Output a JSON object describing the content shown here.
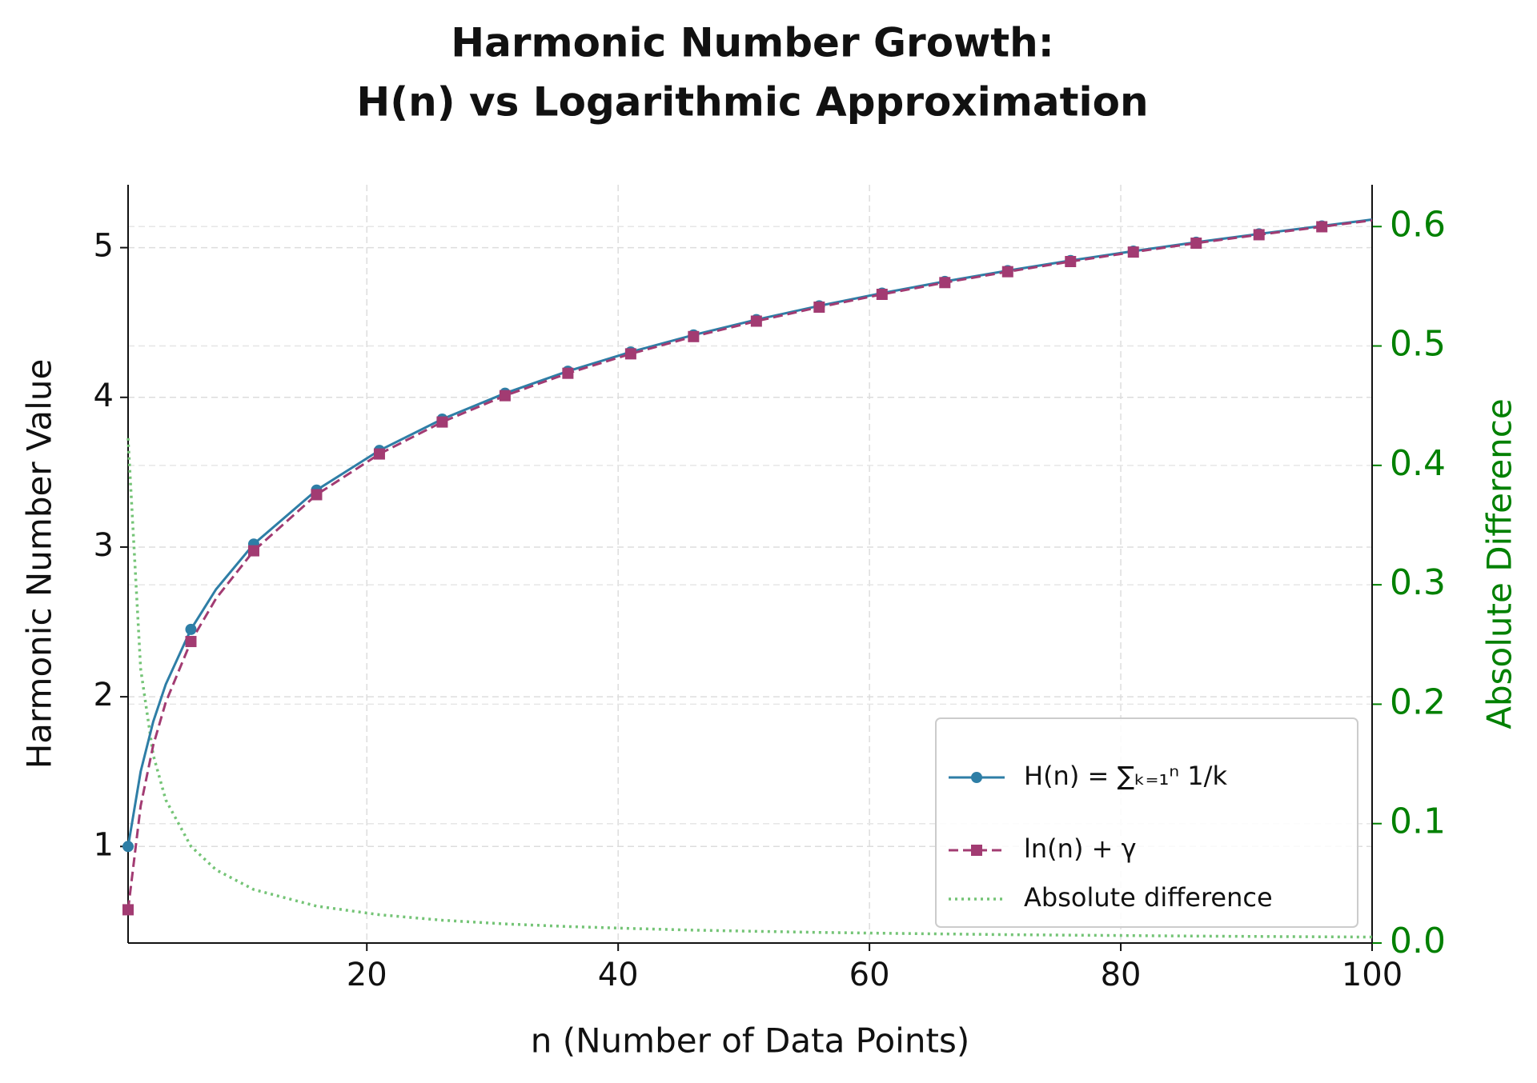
{
  "chart_data": {
    "type": "line",
    "title": [
      "Harmonic Number Growth:",
      "H(n) vs Logarithmic Approximation"
    ],
    "x_label": "n (Number of Data Points)",
    "y_label": "Harmonic Number Value",
    "y2_label": "Absolute Difference",
    "x": [
      1,
      2,
      3,
      4,
      6,
      8,
      11,
      16,
      21,
      26,
      31,
      36,
      41,
      46,
      51,
      56,
      61,
      66,
      71,
      76,
      81,
      86,
      91,
      96,
      100
    ],
    "series": [
      {
        "name": "H(n) = ∑ₖ₌₁ⁿ 1/k",
        "color": "#2e7ea6",
        "marker": "circle",
        "dash": "solid",
        "values": [
          1,
          1.5,
          1.8333,
          2.0833,
          2.45,
          2.7179,
          3.0199,
          3.3807,
          3.6454,
          3.8544,
          4.0272,
          4.1746,
          4.3029,
          4.4167,
          4.5188,
          4.6115,
          4.6962,
          4.7742,
          4.8464,
          4.9137,
          4.9766,
          5.0358,
          5.0918,
          5.1448,
          5.1874
        ]
      },
      {
        "name": "ln(n) + γ",
        "color": "#a23b72",
        "marker": "square",
        "dash": "dashed",
        "values": [
          0.5772,
          1.2704,
          1.6758,
          1.9635,
          2.369,
          2.6566,
          2.9751,
          3.3498,
          3.6217,
          3.8353,
          4.0112,
          4.1608,
          4.2907,
          4.4059,
          4.509,
          4.6026,
          4.688,
          4.7666,
          4.8394,
          4.9071,
          4.9704,
          5.03,
          5.0863,
          5.1396,
          5.1824
        ]
      },
      {
        "name": "Absolute difference",
        "color": "#74c476",
        "marker": "none",
        "dash": "dotted",
        "axis": "y2",
        "values": [
          0.4228,
          0.2296,
          0.1575,
          0.1198,
          0.081,
          0.0613,
          0.0448,
          0.0309,
          0.0237,
          0.0191,
          0.016,
          0.0138,
          0.0122,
          0.0108,
          0.0098,
          0.0089,
          0.0082,
          0.0076,
          0.007,
          0.0066,
          0.0062,
          0.0058,
          0.0055,
          0.0052,
          0.005
        ]
      }
    ],
    "xlim": [
      1,
      100
    ],
    "xticks": [
      20,
      40,
      60,
      80,
      100
    ],
    "ylim": [
      0.355,
      5.42
    ],
    "yticks": [
      1,
      2,
      3,
      4,
      5
    ],
    "y2lim": [
      0,
      0.635
    ],
    "y2ticks": [
      {
        "value": 0,
        "label": "0.0"
      },
      0.1,
      0.2,
      0.3,
      0.4,
      0.5,
      0.6
    ],
    "y2_color": "#008000",
    "grid": true,
    "legend": "lower right"
  }
}
